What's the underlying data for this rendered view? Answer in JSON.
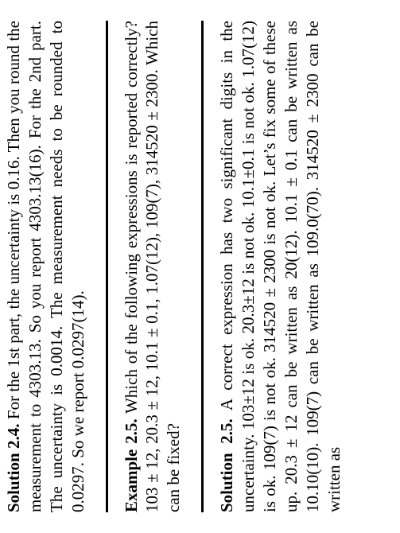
{
  "solution24": {
    "label": "Solution 2.4.",
    "text": " For the 1st part, the uncertainty is 0.16. Then you round the measurement to 4303.13.  So you report 4303.13(16). For the 2nd part. The uncertainty is 0.0014. The measurement needs to be rounded to 0.0297. So we report 0.0297(14)."
  },
  "example25": {
    "label": "Example 2.5.",
    "text": " Which of the following expressions is reported correctly? 103 ± 12, 20.3 ± 12, 10.1 ± 0.1, 1.07(12), 109(7), 314520 ± 2300. Which can be fixed?"
  },
  "solution25": {
    "label": "Solution 2.5.",
    "text": " A correct expression has two significant digits in the uncertainty. 103±12 is ok. 20.3±12 is not ok. 10.1±0.1 is not ok. 1.07(12) is ok. 109(7) is not ok. 314520 ± 2300 is not ok. Let’s fix some of these up. 20.3 ± 12 can be written as 20(12).  10.1 ± 0.1 can be written as 10.10(10).  109(7) can be written as 109.0(70). 314520 ± 2300 can be written as"
  }
}
